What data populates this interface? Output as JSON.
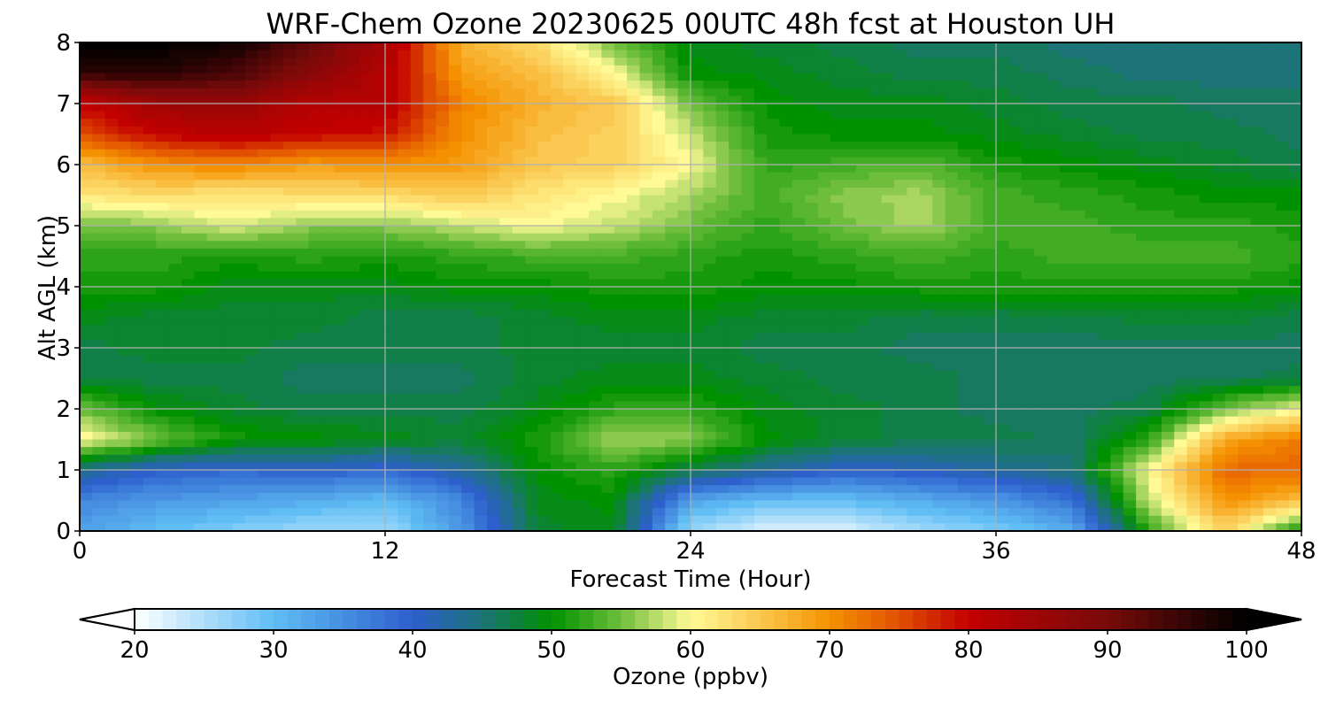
{
  "chart_data": {
    "type": "heatmap",
    "title": "WRF-Chem Ozone  20230625 00UTC 48h fcst at Houston UH",
    "xlabel": "Forecast Time (Hour)",
    "ylabel": "Alt AGL (km)",
    "xlim": [
      0,
      48
    ],
    "ylim": [
      0,
      8
    ],
    "xticks": [
      "0",
      "12",
      "24",
      "36",
      "48"
    ],
    "yticks": [
      "0",
      "1",
      "2",
      "3",
      "4",
      "5",
      "6",
      "7",
      "8"
    ],
    "grid": true,
    "colorbar": {
      "label": "Ozone  (ppbv)",
      "ticks": [
        "20",
        "30",
        "40",
        "50",
        "60",
        "70",
        "80",
        "90",
        "100"
      ],
      "range": [
        20,
        100
      ],
      "extend": "both",
      "orientation": "horizontal"
    },
    "x": [
      0,
      3,
      6,
      9,
      12,
      15,
      18,
      21,
      24,
      27,
      30,
      33,
      36,
      39,
      42,
      45,
      48
    ],
    "y": [
      0,
      0.5,
      1,
      1.5,
      2,
      2.5,
      3,
      3.5,
      4,
      4.5,
      5,
      5.5,
      6,
      6.5,
      7,
      7.5,
      8
    ],
    "z": [
      [
        33,
        30,
        28,
        26,
        26,
        34,
        48,
        49,
        26,
        22,
        22,
        26,
        28,
        32,
        52,
        64,
        50
      ],
      [
        36,
        34,
        33,
        32,
        30,
        36,
        49,
        50,
        33,
        30,
        30,
        32,
        34,
        38,
        58,
        70,
        66
      ],
      [
        44,
        40,
        39,
        40,
        39,
        43,
        50,
        52,
        47,
        43,
        40,
        41,
        43,
        45,
        60,
        73,
        73
      ],
      [
        61,
        55,
        51,
        50,
        49,
        48,
        51,
        57,
        56,
        50,
        48,
        47,
        47,
        46,
        52,
        68,
        72
      ],
      [
        55,
        50,
        48,
        47,
        47,
        47,
        49,
        52,
        52,
        49,
        48,
        47,
        46,
        46,
        47,
        55,
        60
      ],
      [
        47,
        47,
        47,
        46,
        46,
        46,
        48,
        49,
        49,
        48,
        47,
        47,
        46,
        46,
        46,
        46,
        47
      ],
      [
        47,
        48,
        48,
        47,
        47,
        47,
        48,
        48,
        48,
        47,
        47,
        46,
        46,
        46,
        46,
        46,
        46
      ],
      [
        49,
        48,
        48,
        48,
        47,
        47,
        48,
        49,
        49,
        48,
        48,
        47,
        47,
        47,
        48,
        48,
        47
      ],
      [
        51,
        51,
        49,
        49,
        49,
        50,
        50,
        51,
        51,
        50,
        50,
        51,
        51,
        51,
        51,
        51,
        50
      ],
      [
        52,
        52,
        51,
        52,
        51,
        52,
        53,
        53,
        52,
        51,
        52,
        53,
        52,
        53,
        53,
        53,
        52
      ],
      [
        55,
        56,
        59,
        56,
        56,
        58,
        60,
        58,
        55,
        52,
        55,
        57,
        53,
        53,
        52,
        52,
        51
      ],
      [
        62,
        63,
        62,
        63,
        63,
        65,
        62,
        60,
        57,
        53,
        56,
        57,
        53,
        52,
        51,
        50,
        50
      ],
      [
        66,
        70,
        71,
        69,
        70,
        69,
        65,
        64,
        60,
        52,
        53,
        54,
        51,
        50,
        49,
        48,
        47
      ],
      [
        75,
        80,
        82,
        80,
        79,
        70,
        66,
        64,
        58,
        51,
        50,
        50,
        49,
        48,
        47,
        47,
        46
      ],
      [
        80,
        85,
        86,
        82,
        82,
        71,
        67,
        65,
        55,
        50,
        49,
        49,
        48,
        47,
        47,
        46,
        46
      ],
      [
        96,
        97,
        94,
        88,
        82,
        69,
        66,
        60,
        50,
        49,
        48,
        47,
        47,
        46,
        45,
        45,
        45
      ],
      [
        100,
        100,
        99,
        92,
        84,
        67,
        63,
        55,
        49,
        48,
        47,
        46,
        46,
        45,
        45,
        45,
        45
      ]
    ]
  }
}
